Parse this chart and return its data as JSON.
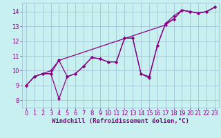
{
  "xlabel": "Windchill (Refroidissement éolien,°C)",
  "bg_color": "#c8f0f0",
  "grid_color": "#a8c8d8",
  "line_color": "#880088",
  "xlim": [
    -0.5,
    23.5
  ],
  "ylim": [
    7.5,
    14.6
  ],
  "xticks": [
    0,
    1,
    2,
    3,
    4,
    5,
    6,
    7,
    8,
    9,
    10,
    11,
    12,
    13,
    14,
    15,
    16,
    17,
    18,
    19,
    20,
    21,
    22,
    23
  ],
  "yticks": [
    8,
    9,
    10,
    11,
    12,
    13,
    14
  ],
  "line1_x": [
    0,
    1,
    2,
    3,
    4,
    5,
    6,
    7,
    8,
    9,
    10,
    11,
    12,
    13,
    14,
    15,
    16,
    17,
    18,
    19,
    20,
    21,
    22,
    23
  ],
  "line1_y": [
    9.0,
    9.6,
    9.8,
    9.8,
    10.7,
    9.6,
    9.8,
    10.3,
    10.9,
    10.8,
    10.6,
    10.6,
    12.2,
    12.2,
    9.8,
    9.6,
    11.7,
    13.2,
    13.7,
    14.1,
    14.0,
    13.9,
    14.0,
    14.3
  ],
  "line2_x": [
    0,
    1,
    2,
    3,
    4,
    5,
    6,
    7,
    8,
    9,
    10,
    11,
    12,
    13,
    14,
    15,
    16,
    17,
    18,
    19,
    20,
    21,
    22,
    23
  ],
  "line2_y": [
    9.0,
    9.6,
    9.8,
    9.8,
    8.1,
    9.6,
    9.8,
    10.3,
    10.9,
    10.8,
    10.6,
    10.6,
    12.2,
    12.2,
    9.8,
    9.5,
    11.7,
    13.2,
    13.5,
    14.1,
    14.0,
    13.9,
    14.0,
    14.3
  ],
  "line3_x": [
    0,
    1,
    2,
    3,
    4,
    17,
    18,
    19,
    20,
    21,
    22,
    23
  ],
  "line3_y": [
    9.0,
    9.6,
    9.8,
    10.0,
    10.7,
    13.1,
    13.5,
    14.1,
    14.0,
    13.9,
    14.0,
    14.3
  ],
  "marker_size": 2.2,
  "linewidth": 0.9,
  "xlabel_fontsize": 6.5,
  "tick_fontsize": 6.0
}
